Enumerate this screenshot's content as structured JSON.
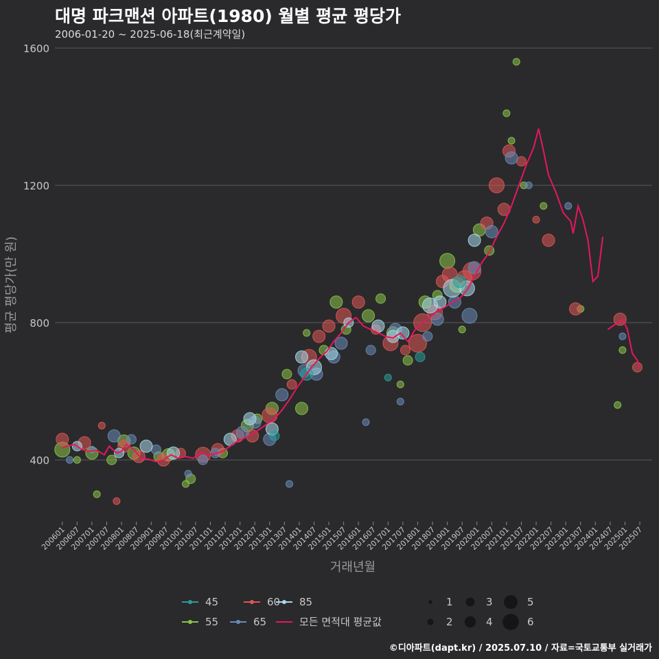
{
  "header": {
    "title": "대명 파크맨션 아파트(1980) 월별 평균 평당가",
    "subtitle": "2006-01-20 ~ 2025-06-18(최근계약일)"
  },
  "footer": {
    "credit": "©디아파트(dapt.kr) / 2025.07.10 / 자료=국토교통부 실거래가"
  },
  "colors": {
    "background": "#2a2a2c",
    "grid": "#5a5a5c",
    "avg_line": "#e8175d",
    "area_45": "#2a9d9a",
    "area_55": "#8bc34a",
    "area_60": "#e05555",
    "area_65": "#6a8bb8",
    "area_85": "#a8d8ea"
  },
  "chart_data": {
    "type": "scatter",
    "title": "대명 파크맨션 아파트(1980) 월별 평균 평당가",
    "xlabel": "거래년월",
    "ylabel": "평균 평당가(만 원)",
    "ylim": [
      220,
      1620
    ],
    "y_ticks": [
      400,
      800,
      1200,
      1600
    ],
    "x_start": "2006-01",
    "x_end": "2025-07",
    "x_ticks": [
      "200601",
      "200607",
      "200701",
      "200707",
      "200801",
      "200807",
      "200901",
      "200907",
      "201001",
      "201007",
      "201101",
      "201107",
      "201201",
      "201207",
      "201301",
      "201307",
      "201401",
      "201407",
      "201501",
      "201507",
      "201601",
      "201607",
      "201701",
      "201707",
      "201801",
      "201807",
      "201901",
      "201907",
      "202001",
      "202007",
      "202101",
      "202107",
      "202201",
      "202207",
      "202301",
      "202307",
      "202401",
      "202407",
      "202501",
      "202507"
    ],
    "legend_area": {
      "labels": [
        "45",
        "60",
        "85",
        "55",
        "65",
        "모든 면적대 평균값"
      ]
    },
    "legend_size": {
      "labels": [
        "1",
        "3",
        "5",
        "2",
        "4",
        "6"
      ]
    },
    "avg_line": {
      "name": "모든 면적대 평균값",
      "points": [
        [
          "2006-01",
          435
        ],
        [
          "2006-03",
          440
        ],
        [
          "2006-06",
          445
        ],
        [
          "2006-09",
          430
        ],
        [
          "2006-12",
          425
        ],
        [
          "2007-03",
          428
        ],
        [
          "2007-06",
          415
        ],
        [
          "2007-08",
          440
        ],
        [
          "2007-11",
          420
        ],
        [
          "2008-01",
          425
        ],
        [
          "2008-03",
          445
        ],
        [
          "2008-06",
          430
        ],
        [
          "2008-09",
          405
        ],
        [
          "2008-12",
          402
        ],
        [
          "2009-03",
          395
        ],
        [
          "2009-06",
          400
        ],
        [
          "2009-09",
          415
        ],
        [
          "2009-12",
          405
        ],
        [
          "2010-03",
          410
        ],
        [
          "2010-06",
          405
        ],
        [
          "2010-09",
          420
        ],
        [
          "2010-12",
          415
        ],
        [
          "2011-03",
          418
        ],
        [
          "2011-06",
          425
        ],
        [
          "2011-09",
          440
        ],
        [
          "2011-12",
          455
        ],
        [
          "2012-03",
          465
        ],
        [
          "2012-06",
          475
        ],
        [
          "2012-09",
          490
        ],
        [
          "2012-12",
          505
        ],
        [
          "2013-03",
          520
        ],
        [
          "2013-06",
          545
        ],
        [
          "2013-09",
          575
        ],
        [
          "2013-12",
          610
        ],
        [
          "2014-03",
          640
        ],
        [
          "2014-06",
          670
        ],
        [
          "2014-09",
          695
        ],
        [
          "2014-12",
          715
        ],
        [
          "2015-03",
          745
        ],
        [
          "2015-06",
          770
        ],
        [
          "2015-09",
          800
        ],
        [
          "2015-12",
          815
        ],
        [
          "2016-03",
          790
        ],
        [
          "2016-06",
          780
        ],
        [
          "2016-09",
          770
        ],
        [
          "2016-12",
          760
        ],
        [
          "2017-03",
          755
        ],
        [
          "2017-06",
          770
        ],
        [
          "2017-09",
          745
        ],
        [
          "2017-12",
          780
        ],
        [
          "2018-03",
          800
        ],
        [
          "2018-06",
          815
        ],
        [
          "2018-09",
          835
        ],
        [
          "2018-12",
          845
        ],
        [
          "2019-03",
          860
        ],
        [
          "2019-06",
          870
        ],
        [
          "2019-09",
          895
        ],
        [
          "2019-12",
          935
        ],
        [
          "2020-03",
          975
        ],
        [
          "2020-06",
          1005
        ],
        [
          "2020-09",
          1050
        ],
        [
          "2020-12",
          1090
        ],
        [
          "2021-03",
          1140
        ],
        [
          "2021-06",
          1200
        ],
        [
          "2021-09",
          1260
        ],
        [
          "2021-12",
          1310
        ],
        [
          "2022-02",
          1365
        ],
        [
          "2022-04",
          1300
        ],
        [
          "2022-06",
          1230
        ],
        [
          "2022-09",
          1180
        ],
        [
          "2022-12",
          1120
        ],
        [
          "2023-03",
          1095
        ],
        [
          "2023-04",
          1060
        ],
        [
          "2023-06",
          1140
        ],
        [
          "2023-08",
          1100
        ],
        [
          "2023-10",
          1040
        ],
        [
          "2023-12",
          920
        ],
        [
          "2024-02",
          935
        ],
        [
          "2024-04",
          1050
        ]
      ],
      "points_late": [
        [
          "2024-06",
          780
        ],
        [
          "2024-08",
          790
        ],
        [
          "2024-10",
          800
        ],
        [
          "2024-12",
          810
        ],
        [
          "2025-02",
          780
        ],
        [
          "2025-03",
          745
        ],
        [
          "2025-04",
          710
        ],
        [
          "2025-05",
          700
        ],
        [
          "2025-06",
          690
        ],
        [
          "2025-07",
          670
        ]
      ]
    },
    "scatter_series": [
      {
        "name": "55",
        "points": [
          [
            "2006-01",
            430,
            4
          ],
          [
            "2006-07",
            400,
            1
          ],
          [
            "2007-01",
            420,
            3
          ],
          [
            "2007-03",
            300,
            1
          ],
          [
            "2007-09",
            400,
            2
          ],
          [
            "2008-02",
            455,
            3
          ],
          [
            "2008-06",
            420,
            3
          ],
          [
            "2009-04",
            410,
            2
          ],
          [
            "2009-08",
            415,
            3
          ],
          [
            "2010-03",
            330,
            1
          ],
          [
            "2010-05",
            345,
            2
          ],
          [
            "2011-06",
            420,
            2
          ],
          [
            "2012-04",
            500,
            3
          ],
          [
            "2012-08",
            520,
            2
          ],
          [
            "2013-02",
            550,
            3
          ],
          [
            "2013-08",
            650,
            2
          ],
          [
            "2014-02",
            550,
            3
          ],
          [
            "2014-04",
            770,
            1
          ],
          [
            "2014-11",
            720,
            2
          ],
          [
            "2015-04",
            860,
            3
          ],
          [
            "2015-08",
            780,
            2
          ],
          [
            "2016-05",
            820,
            3
          ],
          [
            "2016-10",
            870,
            2
          ],
          [
            "2017-03",
            770,
            3
          ],
          [
            "2017-06",
            620,
            1
          ],
          [
            "2017-09",
            690,
            2
          ],
          [
            "2018-04",
            860,
            3
          ],
          [
            "2018-09",
            880,
            2
          ],
          [
            "2019-01",
            980,
            4
          ],
          [
            "2019-05",
            910,
            4
          ],
          [
            "2019-07",
            780,
            1
          ],
          [
            "2020-02",
            1070,
            3
          ],
          [
            "2020-06",
            1010,
            2
          ],
          [
            "2021-01",
            1410,
            1
          ],
          [
            "2021-03",
            1330,
            1
          ],
          [
            "2021-05",
            1560,
            1
          ],
          [
            "2021-08",
            1200,
            1
          ],
          [
            "2022-04",
            1140,
            1
          ],
          [
            "2023-07",
            840,
            1
          ],
          [
            "2024-10",
            560,
            1
          ],
          [
            "2024-12",
            720,
            1
          ]
        ]
      },
      {
        "name": "60",
        "points": [
          [
            "2006-01",
            460,
            3
          ],
          [
            "2006-10",
            450,
            3
          ],
          [
            "2007-05",
            500,
            1
          ],
          [
            "2007-11",
            280,
            1
          ],
          [
            "2008-02",
            440,
            3
          ],
          [
            "2008-08",
            410,
            3
          ],
          [
            "2009-06",
            400,
            3
          ],
          [
            "2010-01",
            420,
            2
          ],
          [
            "2010-10",
            415,
            4
          ],
          [
            "2011-04",
            430,
            3
          ],
          [
            "2011-12",
            470,
            3
          ],
          [
            "2012-06",
            470,
            3
          ],
          [
            "2013-01",
            530,
            4
          ],
          [
            "2013-10",
            620,
            2
          ],
          [
            "2014-05",
            700,
            4
          ],
          [
            "2014-09",
            760,
            3
          ],
          [
            "2015-01",
            790,
            3
          ],
          [
            "2015-07",
            820,
            4
          ],
          [
            "2016-01",
            860,
            3
          ],
          [
            "2016-08",
            780,
            2
          ],
          [
            "2017-02",
            740,
            4
          ],
          [
            "2017-08",
            720,
            2
          ],
          [
            "2018-01",
            740,
            5
          ],
          [
            "2018-03",
            800,
            5
          ],
          [
            "2018-08",
            830,
            4
          ],
          [
            "2018-11",
            920,
            3
          ],
          [
            "2019-02",
            940,
            4
          ],
          [
            "2019-08",
            930,
            4
          ],
          [
            "2019-11",
            950,
            5
          ],
          [
            "2020-05",
            1090,
            3
          ],
          [
            "2020-09",
            1200,
            4
          ],
          [
            "2020-12",
            1130,
            3
          ],
          [
            "2021-02",
            1300,
            3
          ],
          [
            "2021-07",
            1270,
            2
          ],
          [
            "2022-01",
            1100,
            1
          ],
          [
            "2022-06",
            1040,
            3
          ],
          [
            "2023-05",
            840,
            3
          ],
          [
            "2024-11",
            810,
            3
          ],
          [
            "2025-06",
            670,
            2
          ]
        ]
      },
      {
        "name": "65",
        "points": [
          [
            "2006-04",
            400,
            1
          ],
          [
            "2007-01",
            430,
            1
          ],
          [
            "2007-10",
            470,
            3
          ],
          [
            "2008-05",
            460,
            2
          ],
          [
            "2009-03",
            430,
            2
          ],
          [
            "2010-04",
            360,
            1
          ],
          [
            "2010-10",
            400,
            2
          ],
          [
            "2011-03",
            420,
            2
          ],
          [
            "2012-02",
            480,
            3
          ],
          [
            "2012-07",
            510,
            3
          ],
          [
            "2013-01",
            460,
            3
          ],
          [
            "2013-06",
            590,
            3
          ],
          [
            "2013-09",
            330,
            1
          ],
          [
            "2014-03",
            660,
            3
          ],
          [
            "2014-08",
            650,
            3
          ],
          [
            "2015-03",
            700,
            3
          ],
          [
            "2015-06",
            740,
            3
          ],
          [
            "2016-04",
            510,
            1
          ],
          [
            "2016-06",
            720,
            2
          ],
          [
            "2017-04",
            780,
            3
          ],
          [
            "2017-06",
            570,
            1
          ],
          [
            "2018-05",
            760,
            2
          ],
          [
            "2018-09",
            810,
            3
          ],
          [
            "2019-04",
            860,
            3
          ],
          [
            "2019-10",
            820,
            4
          ],
          [
            "2019-12",
            960,
            3
          ],
          [
            "2020-07",
            1065,
            3
          ],
          [
            "2021-03",
            1280,
            3
          ],
          [
            "2021-10",
            1200,
            1
          ],
          [
            "2023-02",
            1140,
            1
          ],
          [
            "2024-12",
            760,
            1
          ]
        ]
      },
      {
        "name": "85",
        "points": [
          [
            "2006-07",
            440,
            2
          ],
          [
            "2007-12",
            420,
            2
          ],
          [
            "2008-11",
            440,
            3
          ],
          [
            "2009-10",
            420,
            3
          ],
          [
            "2011-09",
            460,
            3
          ],
          [
            "2012-05",
            520,
            3
          ],
          [
            "2013-02",
            490,
            3
          ],
          [
            "2014-02",
            700,
            3
          ],
          [
            "2014-07",
            670,
            4
          ],
          [
            "2015-02",
            710,
            3
          ],
          [
            "2015-09",
            800,
            2
          ],
          [
            "2016-09",
            790,
            3
          ],
          [
            "2017-03",
            760,
            3
          ],
          [
            "2017-07",
            770,
            3
          ],
          [
            "2018-06",
            850,
            4
          ],
          [
            "2018-10",
            860,
            3
          ],
          [
            "2019-03",
            900,
            5
          ],
          [
            "2019-09",
            900,
            4
          ],
          [
            "2019-12",
            1040,
            3
          ]
        ]
      },
      {
        "name": "45",
        "points": [
          [
            "2013-03",
            470,
            2
          ],
          [
            "2014-04",
            650,
            3
          ],
          [
            "2017-01",
            640,
            1
          ],
          [
            "2018-02",
            700,
            2
          ],
          [
            "2019-06",
            920,
            3
          ]
        ]
      }
    ]
  }
}
